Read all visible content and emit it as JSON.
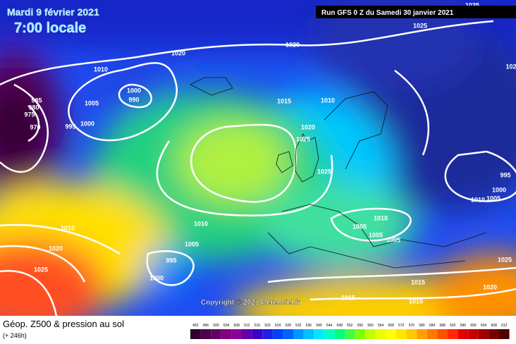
{
  "header": {
    "date": "Mardi 9 février 2021",
    "time": "7:00 locale",
    "run": "Run GFS 0 Z du Samedi 30 janvier 2021"
  },
  "copyright": "Copyright © 2021 Meteociel.fr",
  "legend": {
    "title": "Géop. Z500 & pression au sol",
    "lead": "(+ 246h)",
    "values": [
      492,
      496,
      500,
      504,
      508,
      512,
      516,
      520,
      524,
      528,
      532,
      536,
      540,
      544,
      548,
      552,
      556,
      560,
      564,
      568,
      572,
      576,
      580,
      584,
      588,
      592,
      596,
      600,
      604,
      608,
      612
    ],
    "colors": [
      "#300030",
      "#4a004a",
      "#640064",
      "#7e007e",
      "#8c0096",
      "#6400aa",
      "#3c00c8",
      "#1e1ee6",
      "#0040ff",
      "#0064ff",
      "#0096ff",
      "#00c0ff",
      "#00e6ff",
      "#00ffc8",
      "#00ff80",
      "#40ff40",
      "#80ff00",
      "#c0ff00",
      "#e6ff00",
      "#ffff00",
      "#ffe600",
      "#ffc800",
      "#ffa000",
      "#ff7800",
      "#ff5000",
      "#ff2800",
      "#e60000",
      "#c80000",
      "#a00000",
      "#780000",
      "#500000"
    ]
  },
  "isobar_labels": [
    1035,
    1025,
    1020,
    1020,
    1010,
    1000,
    990,
    1005,
    985,
    980,
    975,
    970,
    995,
    1000,
    1015,
    1010,
    1020,
    1025,
    1025,
    995,
    1000,
    1010,
    1005,
    1010,
    1005,
    1005,
    1005,
    1010,
    1005,
    1015,
    1020,
    1025,
    995,
    1000,
    1025,
    1015,
    1020,
    1015,
    1015,
    102
  ]
}
